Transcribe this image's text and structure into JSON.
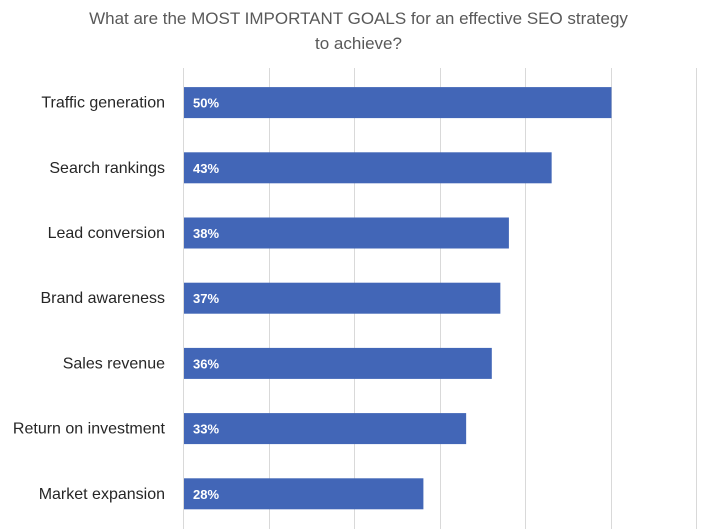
{
  "chart_data": {
    "type": "bar",
    "orientation": "horizontal",
    "title_lines": [
      "What are the MOST IMPORTANT GOALS for an effective SEO strategy",
      "to achieve?"
    ],
    "categories": [
      "Traffic generation",
      "Search rankings",
      "Lead conversion",
      "Brand awareness",
      "Sales revenue",
      "Return on investment",
      "Market expansion"
    ],
    "values": [
      50,
      43,
      38,
      37,
      36,
      33,
      28
    ],
    "value_labels": [
      "50%",
      "43%",
      "38%",
      "37%",
      "36%",
      "33%",
      "28%"
    ],
    "xlim": [
      0,
      60
    ],
    "grid": true,
    "bar_color": "#4266b7"
  }
}
